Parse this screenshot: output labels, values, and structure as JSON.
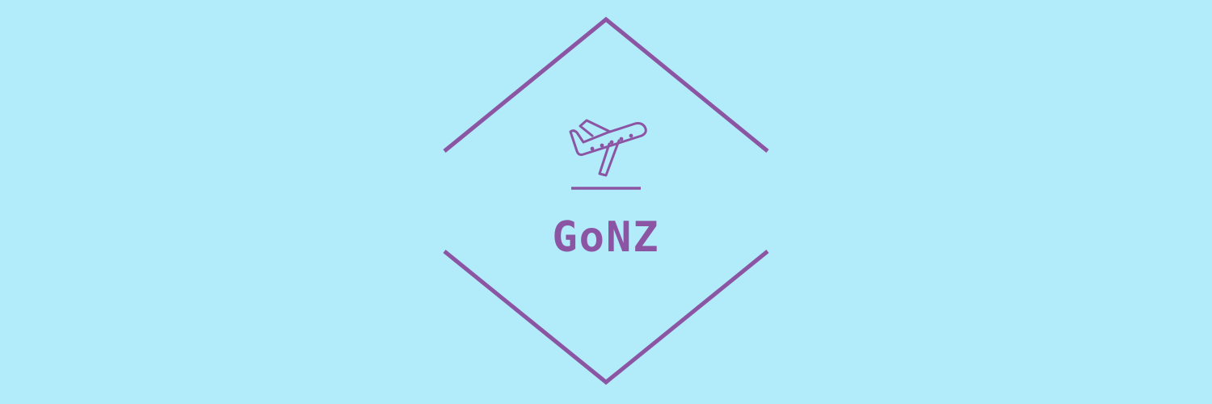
{
  "logo": {
    "name": "GoNZ",
    "icon": "airplane-takeoff-icon",
    "color": "#8b55a3",
    "background": "#b2ebf9"
  }
}
